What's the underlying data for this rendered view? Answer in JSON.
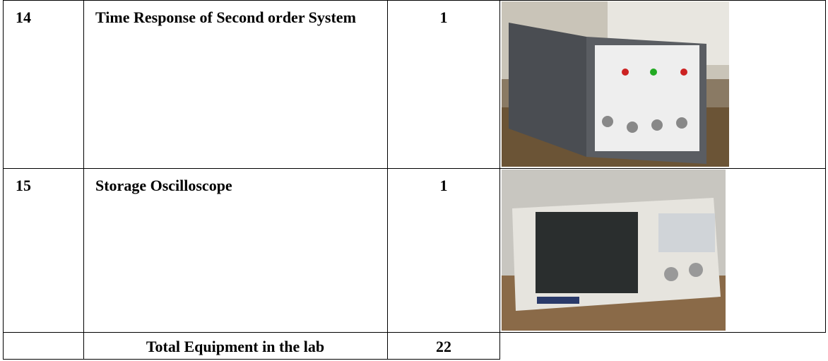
{
  "table": {
    "rows": [
      [
        "14",
        "Time Response of Second order System",
        "1"
      ],
      [
        "15",
        "Storage Oscilloscope",
        "1"
      ]
    ],
    "total": {
      "label": "Total Equipment in the lab",
      "value": "22"
    }
  }
}
